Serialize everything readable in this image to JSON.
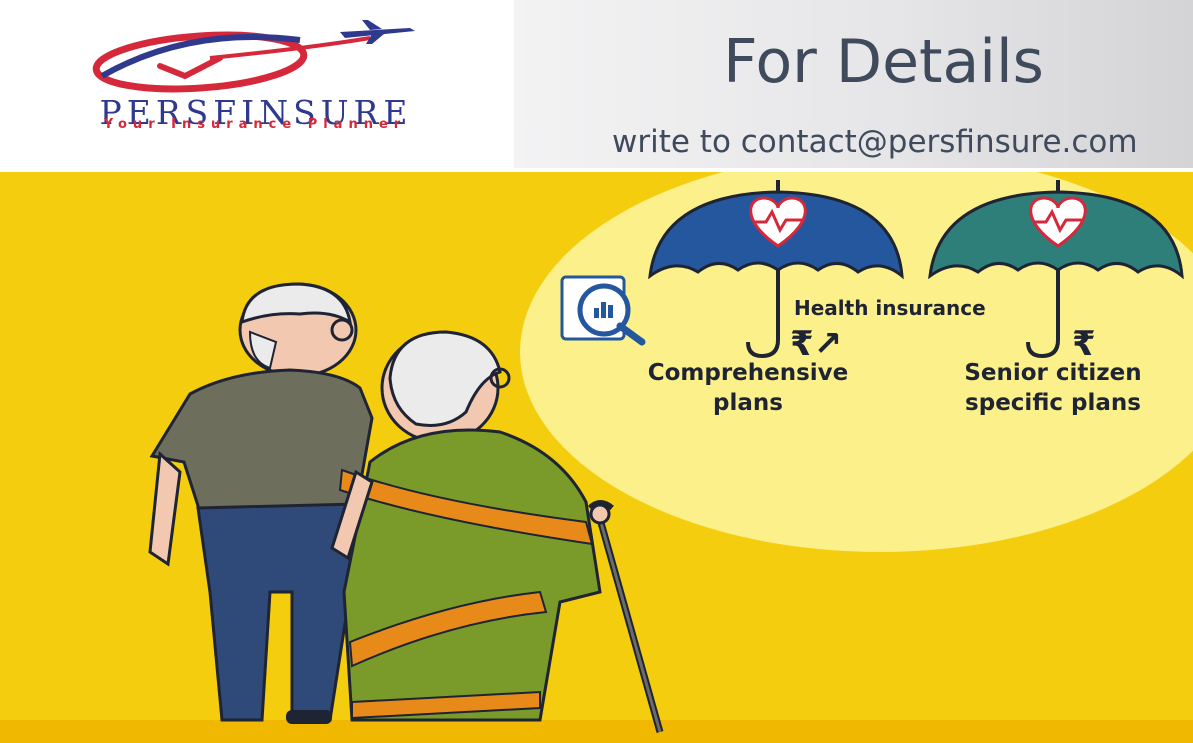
{
  "header": {
    "brand_name": "PERSFINSURE",
    "brand_tagline": "Your Insurance Planner",
    "title": "For Details",
    "contact": "write to contact@persfinsure.com"
  },
  "illustration": {
    "health_label": "Health insurance",
    "plans": [
      {
        "line1": "Comprehensive",
        "line2": "plans",
        "symbol": "₹↗"
      },
      {
        "line1": "Senior citizen",
        "line2": "specific plans",
        "symbol": "₹"
      }
    ]
  },
  "colors": {
    "background_yellow": "#f5cd0f",
    "spotlight": "#fbf08a",
    "umbrella_blue": "#24579e",
    "umbrella_teal": "#2e7f7a",
    "brand_blue": "#2f3a8f",
    "brand_red": "#d6283b",
    "heading_text": "#3f4b5c"
  },
  "icons": [
    "logo-swoosh-icon",
    "airplane-icon",
    "heart-pulse-icon",
    "report-magnifier-icon",
    "rupee-icon",
    "walking-cane-icon"
  ]
}
